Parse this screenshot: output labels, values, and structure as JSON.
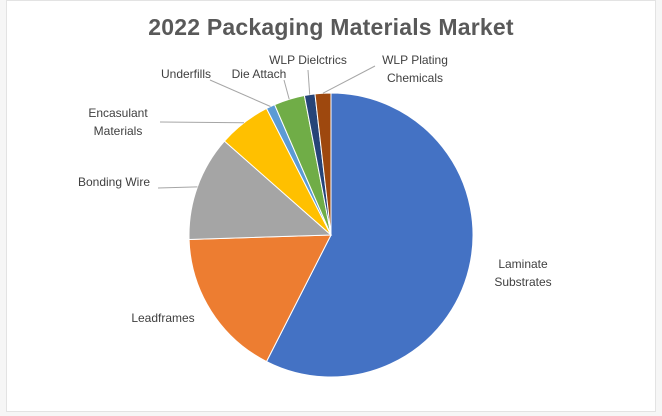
{
  "chart_data": {
    "type": "pie",
    "title": "2022 Packaging Materials Market",
    "legend": "none",
    "slices": [
      {
        "name": "Laminate Substrates",
        "label_lines": [
          "Laminate",
          "Substrates"
        ],
        "value": 57.5,
        "color": "#4472c4"
      },
      {
        "name": "Leadframes",
        "label_lines": [
          "Leadframes"
        ],
        "value": 17.0,
        "color": "#ed7d31"
      },
      {
        "name": "Bonding Wire",
        "label_lines": [
          "Bonding Wire"
        ],
        "value": 12.0,
        "color": "#a5a5a5"
      },
      {
        "name": "Encasulant Materials",
        "label_lines": [
          "Encasulant",
          "Materials"
        ],
        "value": 6.0,
        "color": "#ffc000"
      },
      {
        "name": "Underfills",
        "label_lines": [
          "Underfills"
        ],
        "value": 1.0,
        "color": "#5b9bd5"
      },
      {
        "name": "Die Attach",
        "label_lines": [
          "Die Attach"
        ],
        "value": 3.5,
        "color": "#70ad47"
      },
      {
        "name": "WLP Dielctrics",
        "label_lines": [
          "WLP Dielctrics"
        ],
        "value": 1.2,
        "color": "#264478"
      },
      {
        "name": "WLP Plating Chemicals",
        "label_lines": [
          "WLP Plating",
          "Chemicals"
        ],
        "value": 1.8,
        "color": "#9e480e"
      }
    ]
  }
}
